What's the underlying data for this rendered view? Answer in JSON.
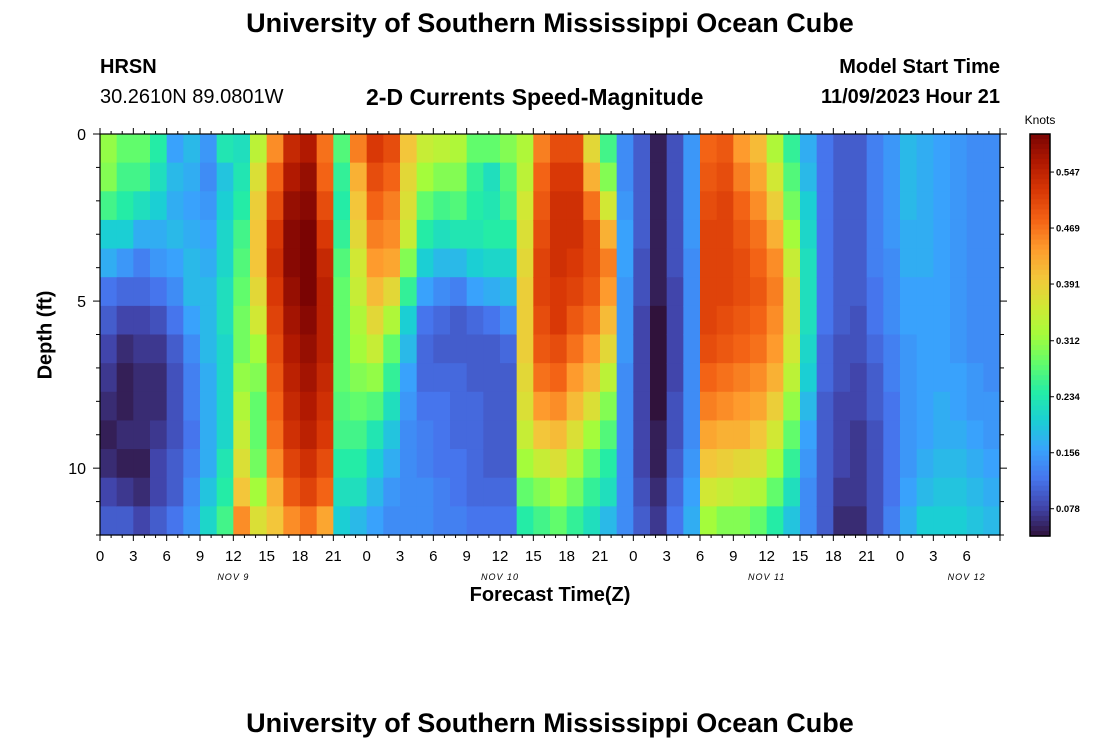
{
  "header": {
    "title": "University of Southern Mississippi Ocean Cube",
    "station": "HRSN",
    "coords": "30.2610N  89.0801W",
    "subtitle": "2-D Currents Speed-Magnitude",
    "model_start_label": "Model Start Time",
    "model_start_value": "11/09/2023 Hour 21"
  },
  "footer": {
    "title": "University of Southern Mississippi Ocean Cube"
  },
  "colors": {
    "scale": [
      "#30123b",
      "#4145ab",
      "#4675ed",
      "#39a2fc",
      "#1bcfd4",
      "#24eca6",
      "#61fc6c",
      "#a4fc3b",
      "#d1e834",
      "#f3c63a",
      "#fe9b2d",
      "#f36315",
      "#d93806",
      "#b11901",
      "#7a0403"
    ]
  },
  "chart_data": {
    "type": "heatmap",
    "title": "2-D Currents Speed-Magnitude",
    "xlabel": "Forecast Time(Z)",
    "ylabel": "Depth (ft)",
    "x_range": [
      0,
      81
    ],
    "y_range": [
      0,
      12
    ],
    "x_ticks": [
      {
        "x": 0,
        "label": "0"
      },
      {
        "x": 3,
        "label": "3"
      },
      {
        "x": 6,
        "label": "6"
      },
      {
        "x": 9,
        "label": "9"
      },
      {
        "x": 12,
        "label": "12"
      },
      {
        "x": 15,
        "label": "15"
      },
      {
        "x": 18,
        "label": "18"
      },
      {
        "x": 21,
        "label": "21"
      },
      {
        "x": 24,
        "label": "0"
      },
      {
        "x": 27,
        "label": "3"
      },
      {
        "x": 30,
        "label": "6"
      },
      {
        "x": 33,
        "label": "9"
      },
      {
        "x": 36,
        "label": "12"
      },
      {
        "x": 39,
        "label": "15"
      },
      {
        "x": 42,
        "label": "18"
      },
      {
        "x": 45,
        "label": "21"
      },
      {
        "x": 48,
        "label": "0"
      },
      {
        "x": 51,
        "label": "3"
      },
      {
        "x": 54,
        "label": "6"
      },
      {
        "x": 57,
        "label": "9"
      },
      {
        "x": 60,
        "label": "12"
      },
      {
        "x": 63,
        "label": "15"
      },
      {
        "x": 66,
        "label": "18"
      },
      {
        "x": 69,
        "label": "21"
      },
      {
        "x": 72,
        "label": "0"
      },
      {
        "x": 75,
        "label": "3"
      },
      {
        "x": 78,
        "label": "6"
      }
    ],
    "day_labels": [
      {
        "x": 12,
        "label": "NOV 9"
      },
      {
        "x": 36,
        "label": "NOV 10"
      },
      {
        "x": 60,
        "label": "NOV 11"
      },
      {
        "x": 78,
        "label": "NOV 12"
      }
    ],
    "y_ticks": [
      0,
      5,
      10
    ],
    "colorbar": {
      "label": "Knots",
      "min": 0.04,
      "max": 0.6,
      "ticks": [
        0.078,
        0.156,
        0.234,
        0.312,
        0.391,
        0.469,
        0.547
      ]
    },
    "speed_knots": [
      [
        0.31,
        0.3,
        0.26,
        0.2,
        0.17,
        0.12,
        0.1,
        0.08,
        0.07,
        0.06,
        0.05,
        0.06,
        0.08,
        0.1
      ],
      [
        0.28,
        0.26,
        0.24,
        0.2,
        0.15,
        0.11,
        0.08,
        0.06,
        0.05,
        0.05,
        0.06,
        0.05,
        0.07,
        0.1
      ],
      [
        0.28,
        0.26,
        0.22,
        0.17,
        0.13,
        0.11,
        0.08,
        0.07,
        0.06,
        0.06,
        0.06,
        0.05,
        0.06,
        0.08
      ],
      [
        0.24,
        0.22,
        0.2,
        0.17,
        0.15,
        0.12,
        0.09,
        0.07,
        0.06,
        0.06,
        0.07,
        0.08,
        0.08,
        0.1
      ],
      [
        0.16,
        0.18,
        0.17,
        0.18,
        0.16,
        0.14,
        0.12,
        0.1,
        0.09,
        0.09,
        0.09,
        0.1,
        0.1,
        0.12
      ],
      [
        0.18,
        0.17,
        0.16,
        0.17,
        0.18,
        0.18,
        0.16,
        0.14,
        0.13,
        0.13,
        0.12,
        0.13,
        0.14,
        0.15
      ],
      [
        0.15,
        0.14,
        0.15,
        0.16,
        0.17,
        0.18,
        0.18,
        0.18,
        0.17,
        0.17,
        0.17,
        0.17,
        0.19,
        0.21
      ],
      [
        0.23,
        0.19,
        0.2,
        0.21,
        0.21,
        0.22,
        0.22,
        0.21,
        0.21,
        0.21,
        0.21,
        0.23,
        0.24,
        0.26
      ],
      [
        0.22,
        0.23,
        0.24,
        0.26,
        0.27,
        0.28,
        0.29,
        0.29,
        0.31,
        0.33,
        0.35,
        0.37,
        0.4,
        0.45
      ],
      [
        0.34,
        0.37,
        0.39,
        0.4,
        0.4,
        0.38,
        0.36,
        0.32,
        0.3,
        0.28,
        0.28,
        0.29,
        0.32,
        0.37
      ],
      [
        0.45,
        0.48,
        0.5,
        0.52,
        0.53,
        0.52,
        0.51,
        0.5,
        0.49,
        0.48,
        0.47,
        0.45,
        0.42,
        0.4
      ],
      [
        0.54,
        0.56,
        0.58,
        0.59,
        0.59,
        0.58,
        0.57,
        0.56,
        0.55,
        0.54,
        0.53,
        0.51,
        0.49,
        0.45
      ],
      [
        0.56,
        0.58,
        0.59,
        0.6,
        0.6,
        0.6,
        0.59,
        0.58,
        0.57,
        0.56,
        0.55,
        0.53,
        0.51,
        0.47
      ],
      [
        0.47,
        0.48,
        0.5,
        0.52,
        0.54,
        0.55,
        0.55,
        0.55,
        0.54,
        0.53,
        0.52,
        0.5,
        0.48,
        0.43
      ],
      [
        0.27,
        0.25,
        0.24,
        0.25,
        0.27,
        0.28,
        0.28,
        0.28,
        0.28,
        0.27,
        0.26,
        0.24,
        0.22,
        0.2
      ],
      [
        0.46,
        0.42,
        0.4,
        0.38,
        0.36,
        0.35,
        0.33,
        0.32,
        0.3,
        0.28,
        0.26,
        0.24,
        0.22,
        0.18
      ],
      [
        0.52,
        0.5,
        0.48,
        0.46,
        0.44,
        0.41,
        0.38,
        0.35,
        0.31,
        0.27,
        0.23,
        0.2,
        0.18,
        0.16
      ],
      [
        0.5,
        0.48,
        0.46,
        0.45,
        0.43,
        0.38,
        0.33,
        0.28,
        0.25,
        0.22,
        0.19,
        0.17,
        0.15,
        0.14
      ],
      [
        0.4,
        0.38,
        0.37,
        0.35,
        0.3,
        0.25,
        0.2,
        0.18,
        0.16,
        0.15,
        0.14,
        0.14,
        0.14,
        0.14
      ],
      [
        0.35,
        0.32,
        0.28,
        0.24,
        0.2,
        0.16,
        0.12,
        0.11,
        0.11,
        0.12,
        0.13,
        0.13,
        0.14,
        0.14
      ],
      [
        0.34,
        0.3,
        0.26,
        0.22,
        0.18,
        0.14,
        0.11,
        0.1,
        0.11,
        0.12,
        0.12,
        0.12,
        0.13,
        0.13
      ],
      [
        0.33,
        0.3,
        0.27,
        0.23,
        0.18,
        0.13,
        0.1,
        0.1,
        0.11,
        0.11,
        0.11,
        0.12,
        0.12,
        0.13
      ],
      [
        0.28,
        0.25,
        0.24,
        0.23,
        0.2,
        0.16,
        0.11,
        0.1,
        0.1,
        0.11,
        0.11,
        0.11,
        0.11,
        0.12
      ],
      [
        0.28,
        0.22,
        0.23,
        0.24,
        0.21,
        0.17,
        0.12,
        0.1,
        0.1,
        0.1,
        0.1,
        0.1,
        0.11,
        0.12
      ],
      [
        0.3,
        0.27,
        0.26,
        0.24,
        0.21,
        0.18,
        0.14,
        0.11,
        0.1,
        0.1,
        0.1,
        0.1,
        0.11,
        0.12
      ],
      [
        0.33,
        0.34,
        0.36,
        0.37,
        0.38,
        0.39,
        0.39,
        0.39,
        0.38,
        0.37,
        0.35,
        0.32,
        0.28,
        0.24
      ],
      [
        0.46,
        0.48,
        0.49,
        0.5,
        0.51,
        0.51,
        0.5,
        0.49,
        0.47,
        0.44,
        0.4,
        0.35,
        0.3,
        0.26
      ],
      [
        0.5,
        0.52,
        0.53,
        0.53,
        0.53,
        0.52,
        0.52,
        0.5,
        0.48,
        0.45,
        0.41,
        0.37,
        0.32,
        0.28
      ],
      [
        0.5,
        0.52,
        0.53,
        0.53,
        0.52,
        0.51,
        0.49,
        0.47,
        0.44,
        0.41,
        0.37,
        0.33,
        0.29,
        0.25
      ],
      [
        0.38,
        0.42,
        0.47,
        0.5,
        0.5,
        0.49,
        0.47,
        0.44,
        0.41,
        0.37,
        0.32,
        0.28,
        0.25,
        0.22
      ],
      [
        0.26,
        0.3,
        0.36,
        0.42,
        0.46,
        0.44,
        0.41,
        0.38,
        0.34,
        0.3,
        0.27,
        0.24,
        0.22,
        0.18
      ],
      [
        0.14,
        0.14,
        0.15,
        0.16,
        0.16,
        0.15,
        0.15,
        0.15,
        0.14,
        0.14,
        0.14,
        0.14,
        0.14,
        0.14
      ],
      [
        0.1,
        0.1,
        0.1,
        0.1,
        0.09,
        0.09,
        0.08,
        0.08,
        0.08,
        0.08,
        0.08,
        0.08,
        0.09,
        0.1
      ],
      [
        0.05,
        0.05,
        0.05,
        0.05,
        0.05,
        0.05,
        0.04,
        0.04,
        0.04,
        0.04,
        0.05,
        0.05,
        0.06,
        0.07
      ],
      [
        0.09,
        0.09,
        0.09,
        0.09,
        0.09,
        0.08,
        0.08,
        0.08,
        0.08,
        0.09,
        0.09,
        0.1,
        0.11,
        0.12
      ],
      [
        0.15,
        0.15,
        0.15,
        0.15,
        0.14,
        0.14,
        0.14,
        0.14,
        0.14,
        0.14,
        0.14,
        0.15,
        0.16,
        0.17
      ],
      [
        0.48,
        0.49,
        0.5,
        0.51,
        0.51,
        0.51,
        0.51,
        0.5,
        0.48,
        0.46,
        0.43,
        0.4,
        0.36,
        0.32
      ],
      [
        0.49,
        0.5,
        0.51,
        0.51,
        0.51,
        0.51,
        0.5,
        0.49,
        0.47,
        0.45,
        0.42,
        0.39,
        0.35,
        0.3
      ],
      [
        0.44,
        0.46,
        0.48,
        0.49,
        0.5,
        0.5,
        0.49,
        0.48,
        0.46,
        0.44,
        0.42,
        0.38,
        0.34,
        0.3
      ],
      [
        0.41,
        0.43,
        0.45,
        0.47,
        0.48,
        0.49,
        0.48,
        0.47,
        0.45,
        0.43,
        0.4,
        0.37,
        0.33,
        0.28
      ],
      [
        0.33,
        0.36,
        0.39,
        0.42,
        0.45,
        0.46,
        0.45,
        0.44,
        0.42,
        0.39,
        0.36,
        0.32,
        0.28,
        0.24
      ],
      [
        0.25,
        0.27,
        0.29,
        0.32,
        0.35,
        0.37,
        0.37,
        0.36,
        0.34,
        0.31,
        0.28,
        0.25,
        0.22,
        0.19
      ],
      [
        0.17,
        0.18,
        0.2,
        0.21,
        0.22,
        0.22,
        0.22,
        0.21,
        0.2,
        0.18,
        0.16,
        0.15,
        0.14,
        0.14
      ],
      [
        0.12,
        0.12,
        0.12,
        0.12,
        0.12,
        0.12,
        0.12,
        0.11,
        0.11,
        0.1,
        0.1,
        0.1,
        0.1,
        0.1
      ],
      [
        0.1,
        0.1,
        0.1,
        0.1,
        0.1,
        0.1,
        0.1,
        0.09,
        0.09,
        0.08,
        0.08,
        0.08,
        0.07,
        0.06
      ],
      [
        0.1,
        0.1,
        0.1,
        0.1,
        0.1,
        0.1,
        0.09,
        0.09,
        0.08,
        0.08,
        0.07,
        0.07,
        0.07,
        0.06
      ],
      [
        0.13,
        0.13,
        0.13,
        0.13,
        0.13,
        0.12,
        0.12,
        0.11,
        0.1,
        0.1,
        0.09,
        0.09,
        0.09,
        0.09
      ],
      [
        0.15,
        0.15,
        0.15,
        0.15,
        0.14,
        0.14,
        0.14,
        0.13,
        0.13,
        0.12,
        0.12,
        0.12,
        0.12,
        0.13
      ],
      [
        0.18,
        0.18,
        0.18,
        0.17,
        0.17,
        0.16,
        0.16,
        0.15,
        0.15,
        0.15,
        0.15,
        0.15,
        0.16,
        0.17
      ],
      [
        0.17,
        0.17,
        0.17,
        0.17,
        0.17,
        0.16,
        0.16,
        0.16,
        0.16,
        0.16,
        0.16,
        0.17,
        0.18,
        0.2
      ],
      [
        0.16,
        0.16,
        0.16,
        0.16,
        0.16,
        0.16,
        0.16,
        0.16,
        0.16,
        0.17,
        0.17,
        0.18,
        0.19,
        0.2
      ],
      [
        0.15,
        0.15,
        0.15,
        0.15,
        0.15,
        0.15,
        0.15,
        0.15,
        0.16,
        0.16,
        0.17,
        0.18,
        0.19,
        0.2
      ],
      [
        0.14,
        0.14,
        0.14,
        0.14,
        0.14,
        0.14,
        0.14,
        0.14,
        0.15,
        0.15,
        0.16,
        0.17,
        0.18,
        0.19
      ],
      [
        0.14,
        0.14,
        0.14,
        0.14,
        0.14,
        0.14,
        0.14,
        0.14,
        0.14,
        0.15,
        0.15,
        0.16,
        0.17,
        0.18
      ]
    ]
  }
}
